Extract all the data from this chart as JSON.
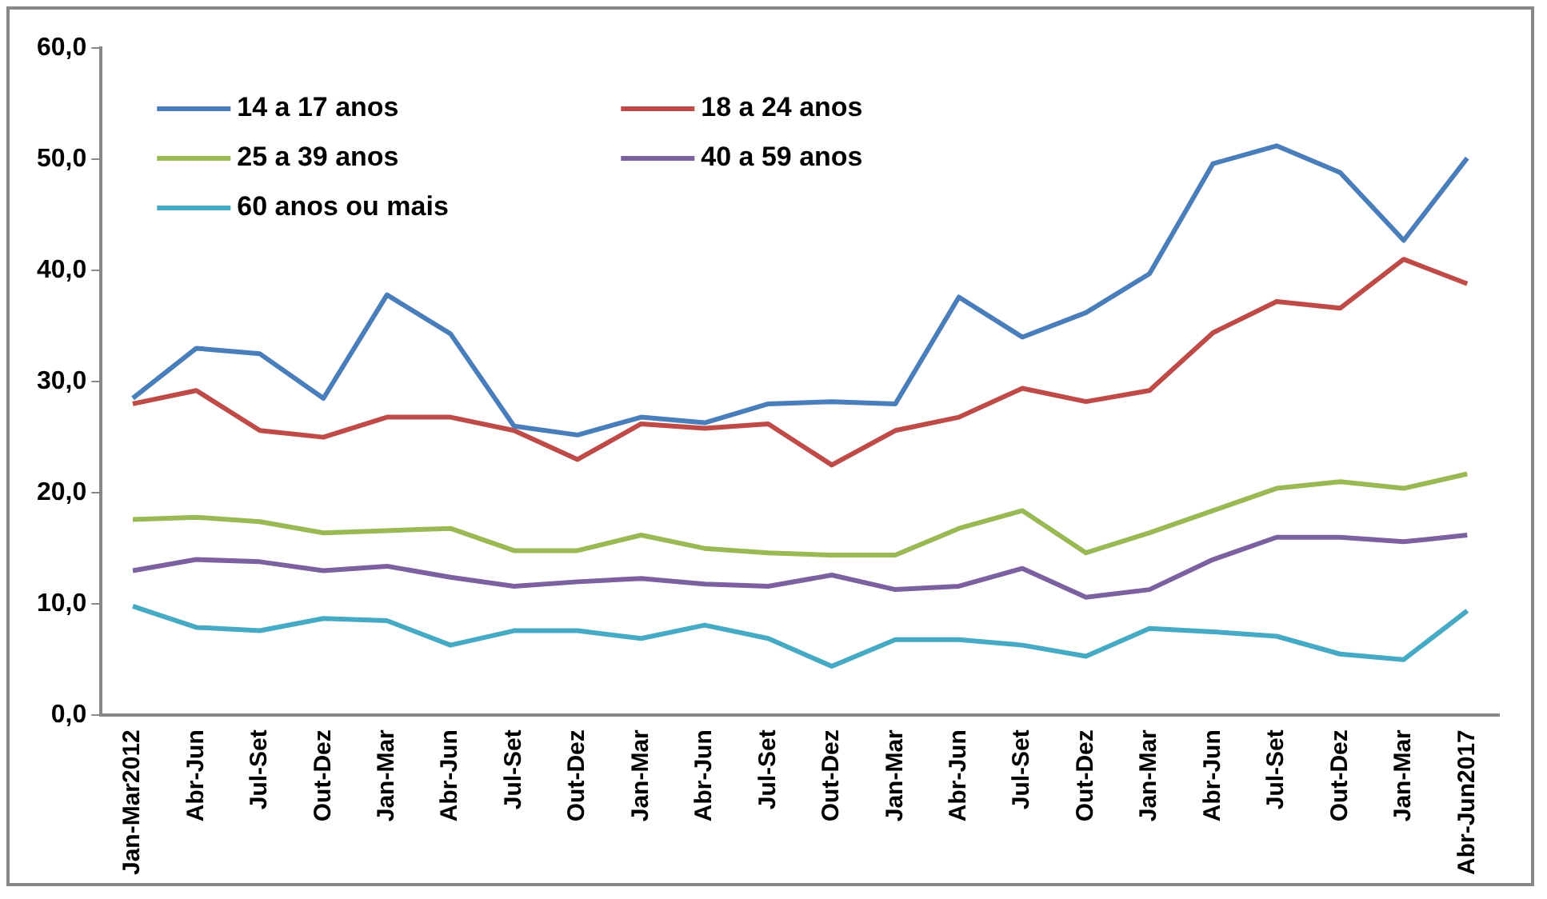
{
  "chart_data": {
    "type": "line",
    "categories": [
      "Jan-Mar2012",
      "Abr-Jun",
      "Jul-Set",
      "Out-Dez",
      "Jan-Mar",
      "Abr-Jun",
      "Jul-Set",
      "Out-Dez",
      "Jan-Mar",
      "Abr-Jun",
      "Jul-Set",
      "Out-Dez",
      "Jan-Mar",
      "Abr-Jun",
      "Jul-Set",
      "Out-Dez",
      "Jan-Mar",
      "Abr-Jun",
      "Jul-Set",
      "Out-Dez",
      "Jan-Mar",
      "Abr-Jun2017"
    ],
    "series": [
      {
        "name": "14 a 17 anos",
        "color": "#4a7ebb",
        "values": [
          28.5,
          33,
          32.5,
          28.5,
          37.8,
          34.3,
          26,
          25.2,
          26.8,
          26.3,
          28,
          28.2,
          28,
          37.6,
          34,
          36.2,
          39.7,
          49.6,
          51.2,
          48.8,
          42.7,
          50.1
        ]
      },
      {
        "name": "18 a 24 anos",
        "color": "#be4b48",
        "values": [
          28,
          29.2,
          25.6,
          25,
          26.8,
          26.8,
          25.6,
          23,
          26.2,
          25.8,
          26.2,
          22.5,
          25.6,
          26.8,
          29.4,
          28.2,
          29.2,
          34.4,
          37.2,
          36.6,
          41,
          38.8
        ]
      },
      {
        "name": "25 a 39 anos",
        "color": "#98b954",
        "values": [
          17.6,
          17.8,
          17.4,
          16.4,
          16.6,
          16.8,
          14.8,
          14.8,
          16.2,
          15,
          14.6,
          14.4,
          14.4,
          16.8,
          18.4,
          14.6,
          16.4,
          18.4,
          20.4,
          21,
          20.4,
          21.7
        ]
      },
      {
        "name": "40 a 59 anos",
        "color": "#7d60a0",
        "values": [
          13,
          14,
          13.8,
          13,
          13.4,
          12.4,
          11.6,
          12,
          12.3,
          11.8,
          11.6,
          12.6,
          11.3,
          11.6,
          13.2,
          10.6,
          11.3,
          14,
          16,
          16,
          15.6,
          16.2
        ]
      },
      {
        "name": "60 anos ou mais",
        "color": "#46aac5",
        "values": [
          9.8,
          7.9,
          7.6,
          8.7,
          8.5,
          6.3,
          7.6,
          7.6,
          6.9,
          8.1,
          6.9,
          4.4,
          6.8,
          6.8,
          6.3,
          5.3,
          7.8,
          7.5,
          7.1,
          5.5,
          5.0,
          9.4
        ]
      }
    ],
    "ylim": [
      0,
      60
    ],
    "yticks": [
      {
        "value": 0,
        "label": "0,0"
      },
      {
        "value": 10,
        "label": "10,0"
      },
      {
        "value": 20,
        "label": "20,0"
      },
      {
        "value": 30,
        "label": "30,0"
      },
      {
        "value": 40,
        "label": "40,0"
      },
      {
        "value": 50,
        "label": "50,0"
      },
      {
        "value": 60,
        "label": "60,0"
      }
    ],
    "grid": false,
    "legend": "top left",
    "marker": "none",
    "line_style": "solid"
  }
}
